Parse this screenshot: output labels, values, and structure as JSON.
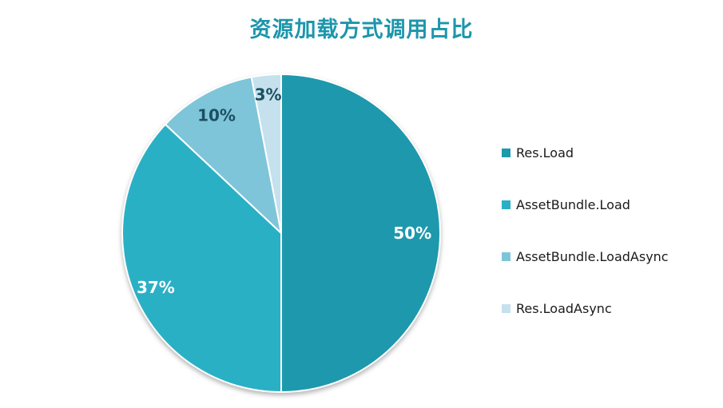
{
  "title": "资源加载方式调用占比",
  "colors": {
    "title": "#1C96AB",
    "legend_text": "#1A1A1A",
    "background": "#FFFFFF",
    "slice_separator": "#FFFFFF"
  },
  "chart_data": {
    "type": "pie",
    "title": "资源加载方式调用占比",
    "legend_position": "right",
    "start_angle_deg": 0,
    "direction": "clockwise",
    "slices": [
      {
        "label": "Res.Load",
        "value": 50,
        "display": "50%",
        "color": "#1E98AC",
        "label_color": "#FFFFFF"
      },
      {
        "label": "AssetBundle.Load",
        "value": 37,
        "display": "37%",
        "color": "#2AB0C5",
        "label_color": "#FFFFFF"
      },
      {
        "label": "AssetBundle.LoadAsync",
        "value": 10,
        "display": "10%",
        "color": "#7EC5D9",
        "label_color": "#1D4F63"
      },
      {
        "label": "Res.LoadAsync",
        "value": 3,
        "display": "3%",
        "color": "#C4E1ED",
        "label_color": "#1D4F63"
      }
    ]
  }
}
